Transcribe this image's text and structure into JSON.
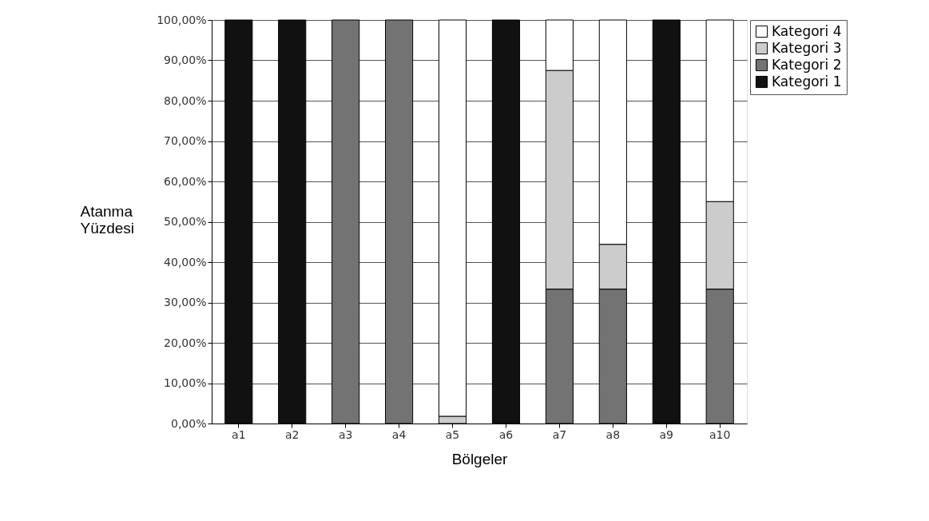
{
  "chart_data": {
    "type": "bar",
    "stacked": true,
    "xlabel": "Bölgeler",
    "ylabel": "Atanma Yüzdesi",
    "categories": [
      "a1",
      "a2",
      "a3",
      "a4",
      "a5",
      "a6",
      "a7",
      "a8",
      "a9",
      "a10"
    ],
    "series": [
      {
        "name": "Kategori 1",
        "color": "#111111",
        "values": [
          100,
          100,
          0,
          0,
          0,
          100,
          0,
          0,
          100,
          0
        ]
      },
      {
        "name": "Kategori 2",
        "color": "#737373",
        "values": [
          0,
          0,
          100,
          100,
          0,
          0,
          33.3,
          33.3,
          0,
          33.3
        ]
      },
      {
        "name": "Kategori 3",
        "color": "#cccccc",
        "values": [
          0,
          0,
          0,
          0,
          1.8,
          0,
          54.2,
          11.1,
          0,
          21.7
        ]
      },
      {
        "name": "Kategori 4",
        "color": "#ffffff",
        "values": [
          0,
          0,
          0,
          0,
          98.2,
          0,
          12.5,
          55.6,
          0,
          45
        ]
      }
    ],
    "ylim": [
      0,
      100
    ],
    "yticks": [
      {
        "value": 0,
        "label": "0,00%"
      },
      {
        "value": 10,
        "label": "10,00%"
      },
      {
        "value": 20,
        "label": "20,00%"
      },
      {
        "value": 30,
        "label": "30,00%"
      },
      {
        "value": 40,
        "label": "40,00%"
      },
      {
        "value": 50,
        "label": "50,00%"
      },
      {
        "value": 60,
        "label": "60,00%"
      },
      {
        "value": 70,
        "label": "70,00%"
      },
      {
        "value": 80,
        "label": "80,00%"
      },
      {
        "value": 90,
        "label": "90,00%"
      },
      {
        "value": 100,
        "label": "100,00%"
      }
    ],
    "grid": "y",
    "legend": "right"
  }
}
